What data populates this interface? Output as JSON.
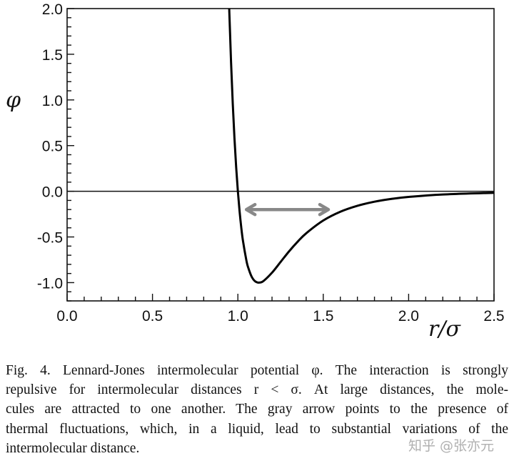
{
  "chart_data": {
    "type": "line",
    "title": "",
    "xlabel": "r/σ",
    "ylabel": "φ",
    "xlim": [
      0.0,
      2.5
    ],
    "ylim": [
      -1.2,
      2.0
    ],
    "xticks": [
      "0.0",
      "0.5",
      "1.0",
      "1.5",
      "2.0",
      "2.5"
    ],
    "xtick_values": [
      0.0,
      0.5,
      1.0,
      1.5,
      2.0,
      2.5
    ],
    "yticks": [
      "2.0",
      "1.5",
      "1.0",
      "0.5",
      "0.0",
      "-0.5",
      "-1.0"
    ],
    "ytick_values": [
      2.0,
      1.5,
      1.0,
      0.5,
      0.0,
      -0.5,
      -1.0
    ],
    "minor_tick_step": 0.1,
    "grid": false,
    "reference_line_y": 0.0,
    "series": [
      {
        "name": "Lennard-Jones potential",
        "color": "#000000",
        "x": [
          0.94,
          0.95,
          0.96,
          0.97,
          0.98,
          0.99,
          1.0,
          1.01,
          1.02,
          1.03,
          1.05,
          1.06,
          1.08,
          1.1,
          1.1225,
          1.15,
          1.2,
          1.25,
          1.3,
          1.35,
          1.4,
          1.5,
          1.6,
          1.7,
          1.8,
          1.9,
          2.0,
          2.2,
          2.5
        ],
        "y": [
          2.606,
          1.96,
          1.418,
          0.963,
          0.582,
          0.264,
          0.0,
          -0.218,
          -0.398,
          -0.544,
          -0.758,
          -0.832,
          -0.932,
          -0.984,
          -1.0,
          -0.982,
          -0.891,
          -0.774,
          -0.657,
          -0.552,
          -0.46,
          -0.32,
          -0.224,
          -0.159,
          -0.114,
          -0.0832,
          -0.0615,
          -0.035,
          -0.0163
        ]
      }
    ],
    "annotations": [
      {
        "type": "double-arrow",
        "color": "#888888",
        "x_from": 1.05,
        "x_to": 1.53,
        "y": -0.2,
        "meaning": "thermal fluctuations"
      }
    ]
  },
  "caption": {
    "lines": [
      "Fig. 4.  Lennard-Jones intermolecular potential φ. The interaction is strongly",
      "repulsive for intermolecular distances r < σ. At large distances, the mole-",
      "cules are attracted to one another. The gray arrow points to the presence of",
      "thermal fluctuations, which, in a liquid, lead to substantial variations of the",
      "intermolecular distance."
    ]
  },
  "watermark": "知乎 @张亦元"
}
